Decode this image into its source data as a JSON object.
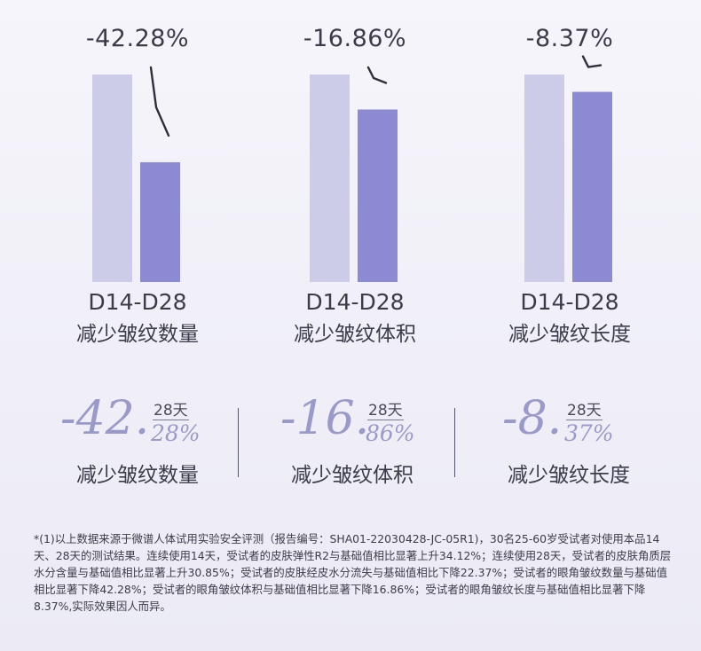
{
  "chart_data": [
    {
      "type": "bar",
      "categories": [
        "D14",
        "D28"
      ],
      "values": [
        100,
        57.72
      ],
      "change_label": "-42.28%",
      "period": "D14-D28",
      "metric": "减少皱纹数量"
    },
    {
      "type": "bar",
      "categories": [
        "D14",
        "D28"
      ],
      "values": [
        100,
        83.14
      ],
      "change_label": "-16.86%",
      "period": "D14-D28",
      "metric": "减少皱纹体积"
    },
    {
      "type": "bar",
      "categories": [
        "D14",
        "D28"
      ],
      "values": [
        100,
        91.63
      ],
      "change_label": "-8.37%",
      "period": "D14-D28",
      "metric": "减少皱纹长度"
    }
  ],
  "colors": {
    "d14_bar": "#cdcce8",
    "d28_bar": "#8c8ad3",
    "arrow": "#2e2e3c",
    "stat_number": "#9a9aca"
  },
  "stats": [
    {
      "prefix": "-42.",
      "decimal": "28%",
      "days": "28天",
      "label": "减少皱纹数量"
    },
    {
      "prefix": "-16.",
      "decimal": "86%",
      "days": "28天",
      "label": "减少皱纹体积"
    },
    {
      "prefix": "-8.",
      "decimal": "37%",
      "days": "28天",
      "label": "减少皱纹长度"
    }
  ],
  "footnote": "*(1)以上数据来源于微谱人体试用实验安全评测（报告编号：SHA01-22030428-JC-05R1)，30名25-60岁受试者对使用本品14天、28天的测试结果。连续使用14天，受试者的皮肤弹性R2与基础值相比显著上升34.12%；连续使用28天，受试者的皮肤角质层水分含量与基础值相比显著上升30.85%；受试者的皮肤经皮水分流失与基础值相比下降22.37%；受试者的眼角皱纹数量与基础值相比显著下降42.28%；受试者的眼角皱纹体积与基础值相比显著下降16.86%；受试者的眼角皱纹长度与基础值相比显著下降8.37%,实际效果因人而异。"
}
